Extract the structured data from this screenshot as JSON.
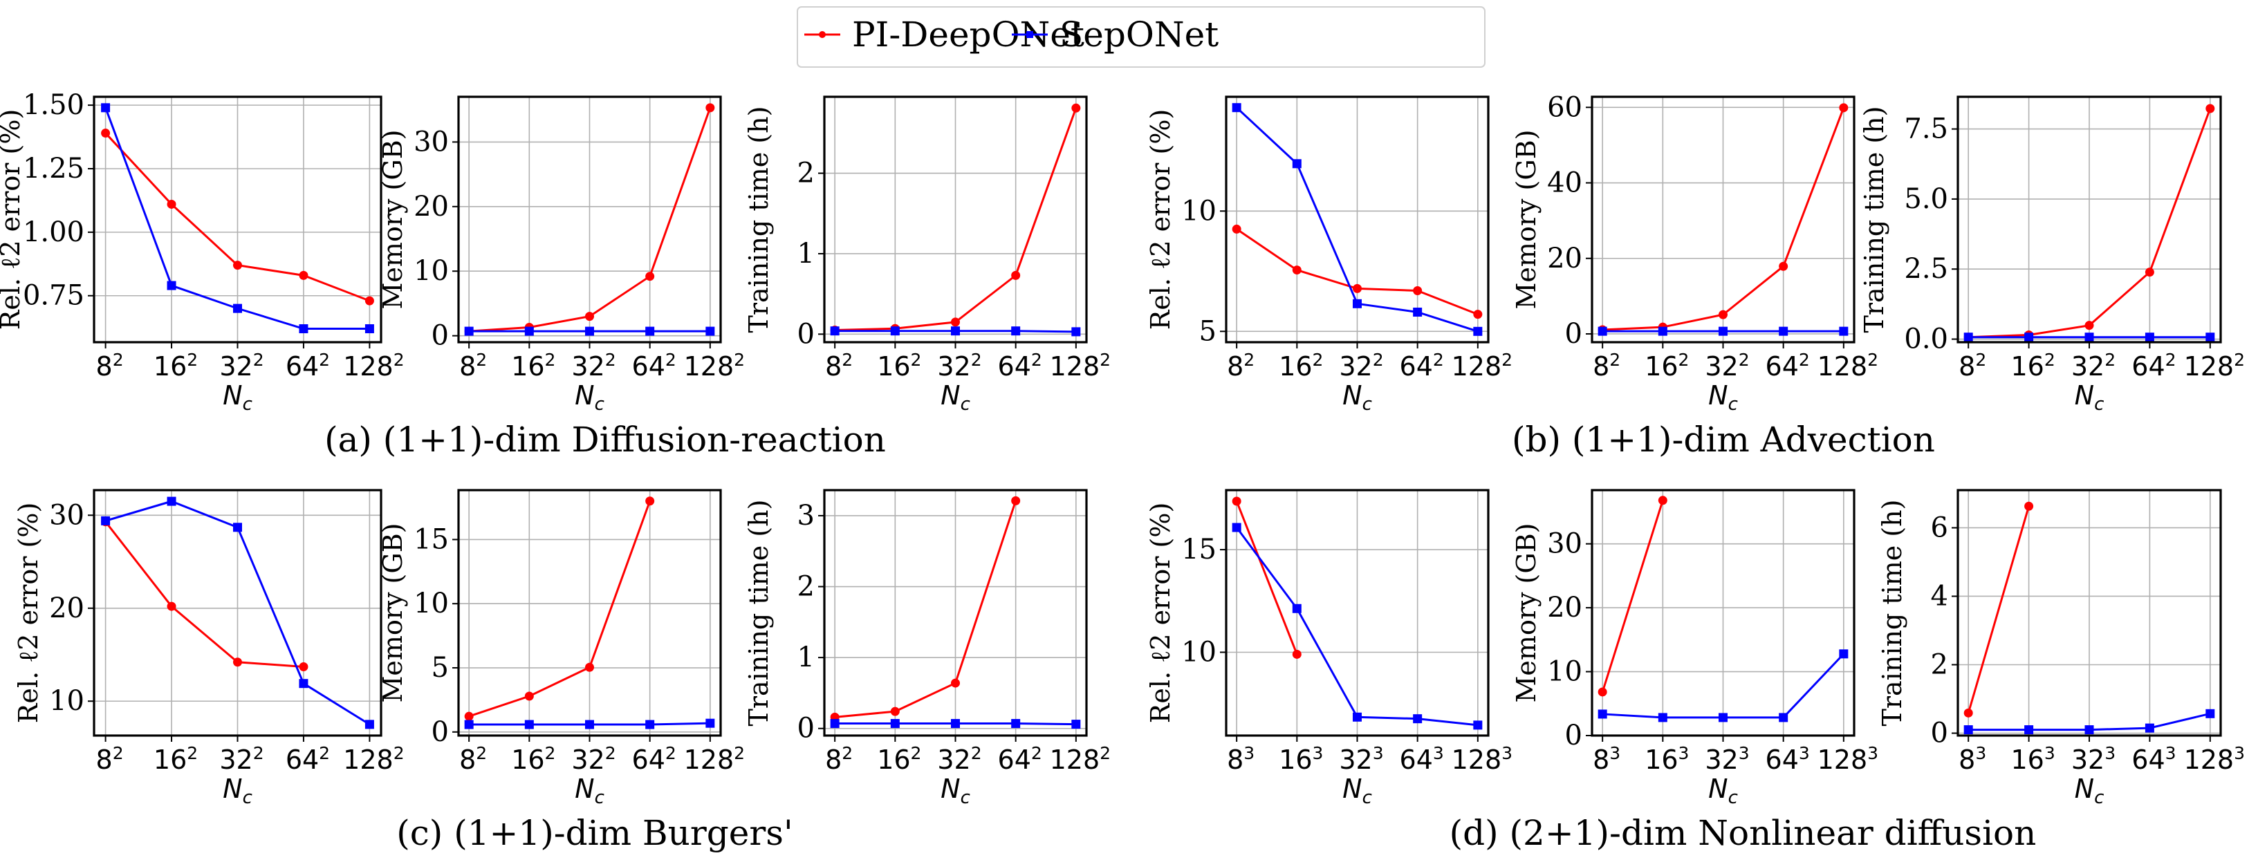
{
  "legend": {
    "position": "top-center",
    "entries": [
      {
        "name": "PI-DeepONet",
        "color": "#ff0000",
        "marker": "circle"
      },
      {
        "name": "SepONet",
        "color": "#0000ff",
        "marker": "square"
      }
    ]
  },
  "chart_data": [
    {
      "type": "line",
      "group": "a",
      "caption": "(a) (1+1)-dim Diffusion-reaction",
      "xlabel": "N",
      "xlabel_sub": "c",
      "ylabel": "Rel. ℓ2 error (%)",
      "categories": [
        "8",
        "16",
        "32",
        "64",
        "128"
      ],
      "exponent": "2",
      "yticks": [
        0.75,
        1.0,
        1.25,
        1.5
      ],
      "ytick_labels": [
        "0.75",
        "1.00",
        "1.25",
        "1.50"
      ],
      "ylim": [
        0.567,
        1.533
      ],
      "grid": true,
      "series": [
        {
          "name": "PI-DeepONet",
          "values": [
            1.39,
            1.11,
            0.87,
            0.83,
            0.73
          ]
        },
        {
          "name": "SepONet",
          "values": [
            1.49,
            0.79,
            0.7,
            0.62,
            0.62
          ]
        }
      ]
    },
    {
      "type": "line",
      "group": "a",
      "caption": "",
      "xlabel": "N",
      "xlabel_sub": "c",
      "ylabel": "Memory (GB)",
      "categories": [
        "8",
        "16",
        "32",
        "64",
        "128"
      ],
      "exponent": "2",
      "yticks": [
        0,
        10,
        20,
        30
      ],
      "ytick_labels": [
        "0",
        "10",
        "20",
        "30"
      ],
      "ylim": [
        -1.0,
        37.0
      ],
      "grid": true,
      "series": [
        {
          "name": "PI-DeepONet",
          "values": [
            0.7,
            1.3,
            3.0,
            9.2,
            35.3
          ]
        },
        {
          "name": "SepONet",
          "values": [
            0.7,
            0.7,
            0.7,
            0.7,
            0.7
          ]
        }
      ]
    },
    {
      "type": "line",
      "group": "a",
      "caption": "",
      "xlabel": "N",
      "xlabel_sub": "c",
      "ylabel": "Training time (h)",
      "categories": [
        "8",
        "16",
        "32",
        "64",
        "128"
      ],
      "exponent": "2",
      "yticks": [
        0,
        1,
        2
      ],
      "ytick_labels": [
        "0",
        "1",
        "2"
      ],
      "ylim": [
        -0.1,
        2.95
      ],
      "grid": true,
      "series": [
        {
          "name": "PI-DeepONet",
          "values": [
            0.05,
            0.07,
            0.15,
            0.73,
            2.81
          ]
        },
        {
          "name": "SepONet",
          "values": [
            0.04,
            0.04,
            0.04,
            0.04,
            0.03
          ]
        }
      ]
    },
    {
      "type": "line",
      "group": "b",
      "caption": "(b) (1+1)-dim Advection",
      "xlabel": "N",
      "xlabel_sub": "c",
      "ylabel": "Rel. ℓ2 error (%)",
      "categories": [
        "8",
        "16",
        "32",
        "64",
        "128"
      ],
      "exponent": "2",
      "yticks": [
        5,
        10
      ],
      "ytick_labels": [
        "5",
        "10"
      ],
      "ylim": [
        4.55,
        14.75
      ],
      "grid": true,
      "series": [
        {
          "name": "PI-DeepONet",
          "values": [
            9.25,
            7.55,
            6.78,
            6.69,
            5.71
          ]
        },
        {
          "name": "SepONet",
          "values": [
            14.3,
            11.97,
            6.15,
            5.8,
            5.0
          ]
        }
      ]
    },
    {
      "type": "line",
      "group": "b",
      "caption": "",
      "xlabel": "N",
      "xlabel_sub": "c",
      "ylabel": "Memory (GB)",
      "categories": [
        "8",
        "16",
        "32",
        "64",
        "128"
      ],
      "exponent": "2",
      "yticks": [
        0,
        20,
        40,
        60
      ],
      "ytick_labels": [
        "0",
        "20",
        "40",
        "60"
      ],
      "ylim": [
        -2.2,
        62.8
      ],
      "grid": true,
      "series": [
        {
          "name": "PI-DeepONet",
          "values": [
            1.1,
            1.8,
            5.1,
            17.9,
            59.9
          ]
        },
        {
          "name": "SepONet",
          "values": [
            0.7,
            0.7,
            0.7,
            0.7,
            0.7
          ]
        }
      ]
    },
    {
      "type": "line",
      "group": "b",
      "caption": "",
      "xlabel": "N",
      "xlabel_sub": "c",
      "ylabel": "Training time (h)",
      "categories": [
        "8",
        "16",
        "32",
        "64",
        "128"
      ],
      "exponent": "2",
      "yticks": [
        0.0,
        2.5,
        5.0,
        7.5
      ],
      "ytick_labels": [
        "0.0",
        "2.5",
        "5.0",
        "7.5"
      ],
      "ylim": [
        -0.11,
        8.65
      ],
      "grid": true,
      "series": [
        {
          "name": "PI-DeepONet",
          "values": [
            0.07,
            0.15,
            0.49,
            2.39,
            8.23
          ]
        },
        {
          "name": "SepONet",
          "values": [
            0.07,
            0.07,
            0.07,
            0.07,
            0.07
          ]
        }
      ]
    },
    {
      "type": "line",
      "group": "c",
      "caption": "(c) (1+1)-dim Burgers'",
      "xlabel": "N",
      "xlabel_sub": "c",
      "ylabel": "Rel. ℓ2 error (%)",
      "categories": [
        "8",
        "16",
        "32",
        "64",
        "128"
      ],
      "exponent": "2",
      "yticks": [
        10,
        20,
        30
      ],
      "ytick_labels": [
        "10",
        "20",
        "30"
      ],
      "ylim": [
        6.3,
        32.7
      ],
      "grid": true,
      "series": [
        {
          "name": "PI-DeepONet",
          "values": [
            29.3,
            20.2,
            14.2,
            13.7,
            null
          ]
        },
        {
          "name": "SepONet",
          "values": [
            29.4,
            31.5,
            28.7,
            11.9,
            7.5
          ]
        }
      ]
    },
    {
      "type": "line",
      "group": "c",
      "caption": "",
      "xlabel": "N",
      "xlabel_sub": "c",
      "ylabel": "Memory (GB)",
      "categories": [
        "8",
        "16",
        "32",
        "64",
        "128"
      ],
      "exponent": "2",
      "yticks": [
        0,
        5,
        10,
        15
      ],
      "ytick_labels": [
        "0",
        "5",
        "10",
        "15"
      ],
      "ylim": [
        -0.28,
        18.85
      ],
      "grid": true,
      "series": [
        {
          "name": "PI-DeepONet",
          "values": [
            1.22,
            2.79,
            5.04,
            18.0,
            null
          ]
        },
        {
          "name": "SepONet",
          "values": [
            0.58,
            0.58,
            0.58,
            0.58,
            0.68
          ]
        }
      ]
    },
    {
      "type": "line",
      "group": "c",
      "caption": "",
      "xlabel": "N",
      "xlabel_sub": "c",
      "ylabel": "Training time (h)",
      "categories": [
        "8",
        "16",
        "32",
        "64",
        "128"
      ],
      "exponent": "2",
      "yticks": [
        0,
        1,
        2,
        3
      ],
      "ytick_labels": [
        "0",
        "1",
        "2",
        "3"
      ],
      "ylim": [
        -0.1,
        3.36
      ],
      "grid": true,
      "series": [
        {
          "name": "PI-DeepONet",
          "values": [
            0.16,
            0.24,
            0.64,
            3.21,
            null
          ]
        },
        {
          "name": "SepONet",
          "values": [
            0.07,
            0.07,
            0.07,
            0.07,
            0.06
          ]
        }
      ]
    },
    {
      "type": "line",
      "group": "d",
      "caption": "(d) (2+1)-dim Nonlinear diffusion",
      "xlabel": "N",
      "xlabel_sub": "c",
      "ylabel": "Rel. ℓ2 error (%)",
      "categories": [
        "8",
        "16",
        "32",
        "64",
        "128"
      ],
      "exponent": "3",
      "yticks": [
        10,
        15
      ],
      "ytick_labels": [
        "10",
        "15"
      ],
      "ylim": [
        5.94,
        17.9
      ],
      "grid": true,
      "series": [
        {
          "name": "PI-DeepONet",
          "values": [
            17.36,
            9.9,
            null,
            null,
            null
          ]
        },
        {
          "name": "SepONet",
          "values": [
            16.08,
            12.13,
            6.84,
            6.76,
            6.45
          ]
        }
      ]
    },
    {
      "type": "line",
      "group": "d",
      "caption": "",
      "xlabel": "N",
      "xlabel_sub": "c",
      "ylabel": "Memory (GB)",
      "categories": [
        "8",
        "16",
        "32",
        "64",
        "128"
      ],
      "exponent": "3",
      "yticks": [
        0,
        10,
        20,
        30
      ],
      "ytick_labels": [
        "0",
        "10",
        "20",
        "30"
      ],
      "ylim": [
        0.0,
        38.4
      ],
      "grid": true,
      "series": [
        {
          "name": "PI-DeepONet",
          "values": [
            6.82,
            36.8,
            null,
            null,
            null
          ]
        },
        {
          "name": "SepONet",
          "values": [
            3.36,
            2.82,
            2.82,
            2.82,
            12.78
          ]
        }
      ]
    },
    {
      "type": "line",
      "group": "d",
      "caption": "",
      "xlabel": "N",
      "xlabel_sub": "c",
      "ylabel": "Training time (h)",
      "categories": [
        "8",
        "16",
        "32",
        "64",
        "128"
      ],
      "exponent": "3",
      "yticks": [
        0,
        2,
        4,
        6
      ],
      "ytick_labels": [
        "0",
        "2",
        "4",
        "6"
      ],
      "ylim": [
        -0.07,
        7.1
      ],
      "grid": true,
      "series": [
        {
          "name": "PI-DeepONet",
          "values": [
            0.59,
            6.63,
            null,
            null,
            null
          ]
        },
        {
          "name": "SepONet",
          "values": [
            0.1,
            0.1,
            0.1,
            0.15,
            0.57
          ]
        }
      ]
    }
  ]
}
